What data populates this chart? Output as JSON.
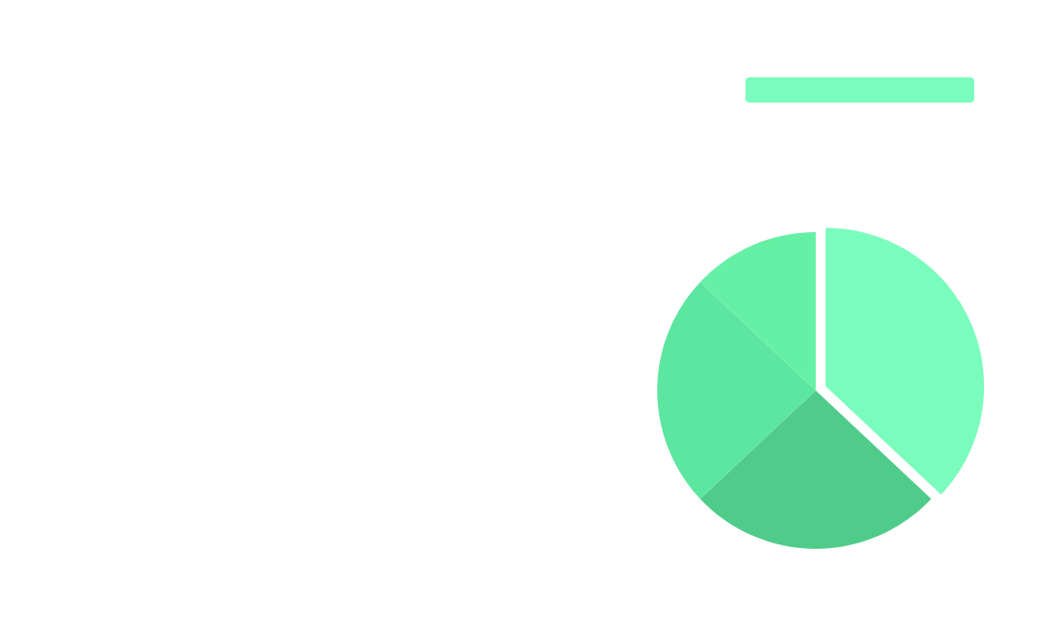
{
  "chart_data": {
    "type": "pie",
    "categories": [
      null,
      null,
      null,
      null
    ],
    "values": [
      37,
      26,
      24,
      13
    ],
    "colors": [
      "#7afcbd",
      "#4fcc8a",
      "#5ce6a0",
      "#66f0a5"
    ]
  }
}
